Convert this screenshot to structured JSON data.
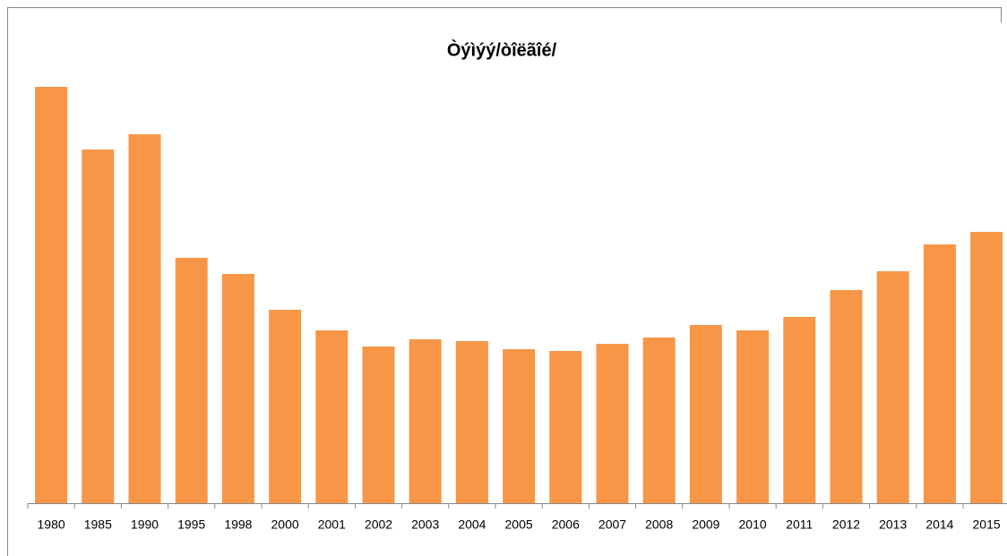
{
  "chart_data": {
    "type": "bar",
    "title": "Òýìýý/òîëãîé/",
    "categories": [
      "1980",
      "1985",
      "1990",
      "1995",
      "1998",
      "2000",
      "2001",
      "2002",
      "2003",
      "2004",
      "2005",
      "2006",
      "2007",
      "2008",
      "2009",
      "2010",
      "2011",
      "2012",
      "2013",
      "2014",
      "2015"
    ],
    "values": [
      465,
      395,
      412,
      274,
      256,
      216,
      193,
      175,
      183,
      181,
      172,
      170,
      178,
      185,
      199,
      193,
      208,
      238,
      259,
      289,
      303
    ],
    "color": "#f79646",
    "ylim": [
      0,
      500
    ]
  }
}
